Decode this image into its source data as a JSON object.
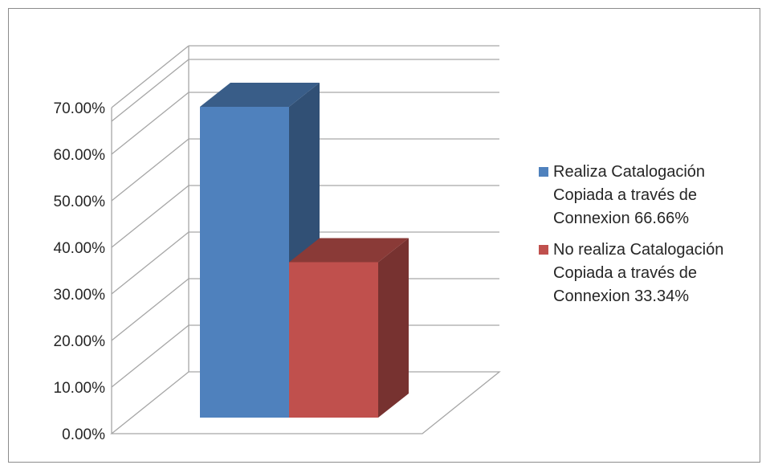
{
  "chart_data": {
    "type": "bar",
    "categories": [
      ""
    ],
    "series": [
      {
        "name": "Realiza Catalogación\nCopiada a través de\nConnexion 66.66%",
        "values": [
          66.66
        ],
        "color": "#4f81bd"
      },
      {
        "name": "No realiza Catalogación\nCopiada a través de\nConnexion 33.34%",
        "values": [
          33.34
        ],
        "color": "#c0504d"
      }
    ],
    "ylim": [
      0,
      70
    ],
    "yticks": [
      "0.00%",
      "10.00%",
      "20.00%",
      "30.00%",
      "40.00%",
      "50.00%",
      "60.00%",
      "70.00%"
    ],
    "grid": true,
    "three_d": true,
    "legend_position": "right",
    "title": "",
    "xlabel": "",
    "ylabel": ""
  }
}
